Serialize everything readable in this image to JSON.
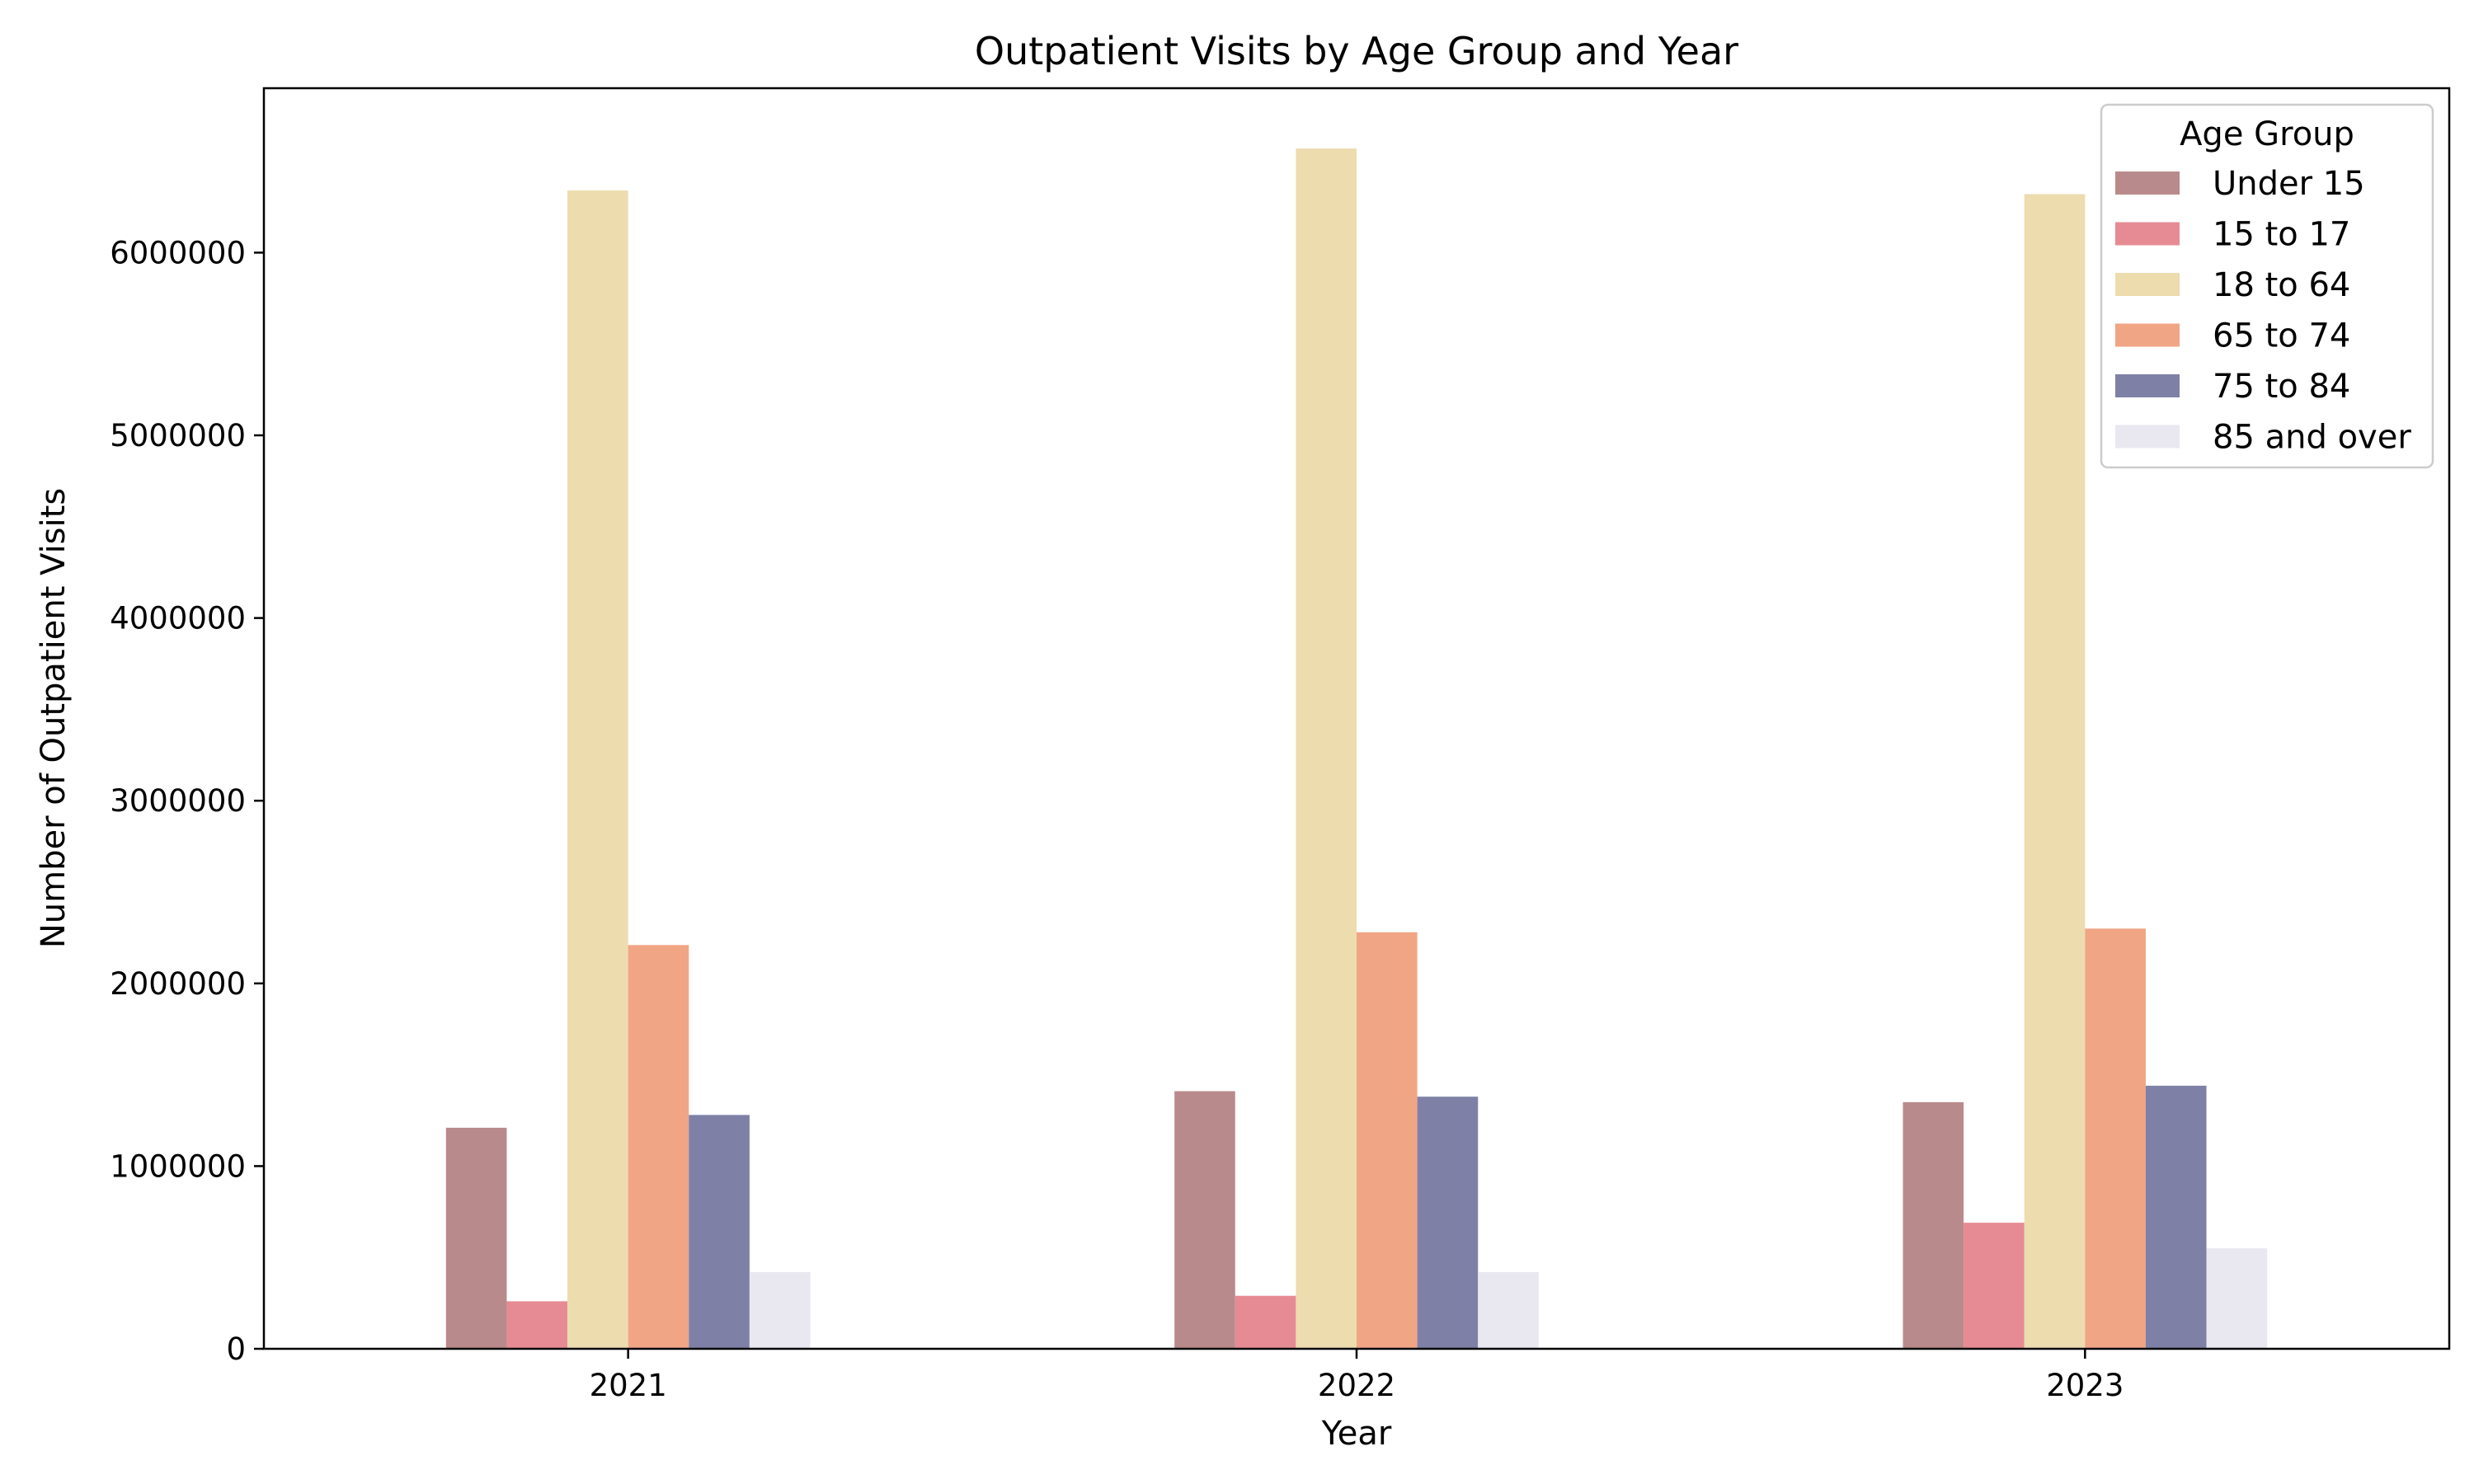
{
  "chart_data": {
    "type": "bar",
    "title": "Outpatient Visits by Age Group and Year",
    "xlabel": "Year",
    "ylabel": "Number of Outpatient Visits",
    "categories": [
      "2021",
      "2022",
      "2023"
    ],
    "ylim": [
      0,
      6900000
    ],
    "yticks": [
      0,
      1000000,
      2000000,
      3000000,
      4000000,
      5000000,
      6000000
    ],
    "ytick_labels": [
      "0",
      "1000000",
      "2000000",
      "3000000",
      "4000000",
      "5000000",
      "6000000"
    ],
    "grid": false,
    "legend": {
      "title": "Age Group",
      "placement": "top-right"
    },
    "series": [
      {
        "name": "Under 15",
        "color": "#b98a8b",
        "values": [
          1210000,
          1410000,
          1350000
        ]
      },
      {
        "name": "15 to 17",
        "color": "#e68b94",
        "values": [
          260000,
          290000,
          690000
        ]
      },
      {
        "name": "18 to 64",
        "color": "#ecdcae",
        "values": [
          6340000,
          6570000,
          6320000
        ]
      },
      {
        "name": "65 to 74",
        "color": "#f0a585",
        "values": [
          2210000,
          2280000,
          2300000
        ]
      },
      {
        "name": "75 to 84",
        "color": "#7f80a6",
        "values": [
          1280000,
          1380000,
          1440000
        ]
      },
      {
        "name": "85 and over",
        "color": "#e9e8f0",
        "values": [
          420000,
          420000,
          550000
        ]
      }
    ]
  }
}
